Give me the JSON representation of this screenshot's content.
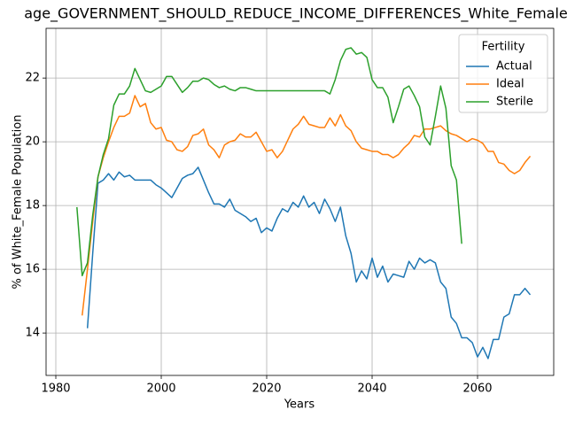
{
  "chart_data": {
    "type": "line",
    "title": "age_GOVERNMENT_SHOULD_REDUCE_INCOME_DIFFERENCES_White_Female_",
    "x_label": "Years",
    "y_label": "% of White_Female Population",
    "legend_title": "Fertility",
    "legend_position": "upper right",
    "grid": true,
    "xlim": [
      1978.15,
      2074.45
    ],
    "ylim": [
      12.67,
      23.56
    ],
    "xticks": [
      1980,
      2000,
      2020,
      2040,
      2060
    ],
    "yticks": [
      14,
      16,
      18,
      20,
      22
    ],
    "x": [
      1984,
      1985,
      1986,
      1987,
      1988,
      1989,
      1990,
      1991,
      1992,
      1993,
      1994,
      1995,
      1996,
      1997,
      1998,
      1999,
      2000,
      2001,
      2002,
      2003,
      2004,
      2005,
      2006,
      2007,
      2008,
      2009,
      2010,
      2011,
      2012,
      2013,
      2014,
      2015,
      2016,
      2017,
      2018,
      2019,
      2020,
      2021,
      2022,
      2023,
      2024,
      2025,
      2026,
      2027,
      2028,
      2029,
      2030,
      2031,
      2032,
      2033,
      2034,
      2035,
      2036,
      2037,
      2038,
      2039,
      2040,
      2041,
      2042,
      2043,
      2044,
      2045,
      2046,
      2047,
      2048,
      2049,
      2050,
      2051,
      2052,
      2053,
      2054,
      2055,
      2056,
      2057,
      2058,
      2059,
      2060,
      2061,
      2062,
      2063,
      2064,
      2065,
      2066,
      2067,
      2068,
      2069,
      2070
    ],
    "series": [
      {
        "name": "Actual",
        "color": "#1f77b4",
        "values": [
          null,
          null,
          14.15,
          16.5,
          18.7,
          18.8,
          19.0,
          18.8,
          19.05,
          18.9,
          18.95,
          18.8,
          18.8,
          18.8,
          18.8,
          18.65,
          18.55,
          18.4,
          18.25,
          18.55,
          18.85,
          18.95,
          19.0,
          19.2,
          18.8,
          18.4,
          18.05,
          18.05,
          17.95,
          18.2,
          17.85,
          17.75,
          17.65,
          17.5,
          17.6,
          17.15,
          17.3,
          17.2,
          17.6,
          17.9,
          17.8,
          18.1,
          17.95,
          18.3,
          17.95,
          18.1,
          17.75,
          18.2,
          17.9,
          17.5,
          17.95,
          17.05,
          16.5,
          15.6,
          15.95,
          15.7,
          16.35,
          15.75,
          16.1,
          15.6,
          15.85,
          15.8,
          15.75,
          16.25,
          16.0,
          16.35,
          16.2,
          16.3,
          16.2,
          15.6,
          15.4,
          14.5,
          14.3,
          13.85,
          13.85,
          13.7,
          13.25,
          13.55,
          13.2,
          13.8,
          13.8,
          14.5,
          14.6,
          15.2,
          15.2,
          15.4,
          15.2
        ]
      },
      {
        "name": "Ideal",
        "color": "#ff7f0e",
        "values": [
          null,
          14.55,
          16.0,
          17.5,
          18.9,
          19.5,
          20.0,
          20.45,
          20.8,
          20.8,
          20.9,
          21.45,
          21.1,
          21.2,
          20.6,
          20.4,
          20.45,
          20.05,
          20.0,
          19.75,
          19.7,
          19.85,
          20.2,
          20.25,
          20.4,
          19.9,
          19.75,
          19.5,
          19.9,
          20.0,
          20.05,
          20.25,
          20.15,
          20.15,
          20.3,
          20.0,
          19.7,
          19.75,
          19.5,
          19.7,
          20.05,
          20.4,
          20.55,
          20.8,
          20.55,
          20.5,
          20.45,
          20.45,
          20.75,
          20.5,
          20.85,
          20.5,
          20.35,
          20.0,
          19.8,
          19.75,
          19.7,
          19.7,
          19.6,
          19.6,
          19.5,
          19.6,
          19.8,
          19.95,
          20.2,
          20.15,
          20.4,
          20.4,
          20.45,
          20.5,
          20.35,
          20.25,
          20.2,
          20.1,
          20.0,
          20.1,
          20.05,
          19.95,
          19.7,
          19.7,
          19.35,
          19.3,
          19.1,
          19.0,
          19.1,
          19.35,
          19.55
        ]
      },
      {
        "name": "Sterile",
        "color": "#2ca02c",
        "values": [
          17.95,
          15.8,
          16.2,
          17.7,
          18.9,
          19.6,
          20.1,
          21.15,
          21.5,
          21.5,
          21.75,
          22.3,
          21.95,
          21.6,
          21.55,
          21.65,
          21.75,
          22.05,
          22.05,
          21.8,
          21.55,
          21.7,
          21.9,
          21.9,
          22.0,
          21.95,
          21.8,
          21.7,
          21.75,
          21.65,
          21.6,
          21.7,
          21.7,
          21.65,
          21.6,
          21.6,
          21.6,
          21.6,
          21.6,
          21.6,
          21.6,
          21.6,
          21.6,
          21.6,
          21.6,
          21.6,
          21.6,
          21.6,
          21.5,
          21.95,
          22.55,
          22.9,
          22.95,
          22.75,
          22.8,
          22.65,
          21.95,
          21.7,
          21.7,
          21.4,
          20.6,
          21.1,
          21.65,
          21.75,
          21.45,
          21.1,
          20.15,
          19.9,
          20.8,
          21.75,
          21.05,
          19.25,
          18.8,
          16.8,
          null,
          null,
          null,
          null,
          null,
          null,
          null,
          null,
          null,
          null,
          null,
          null,
          null
        ]
      }
    ]
  }
}
